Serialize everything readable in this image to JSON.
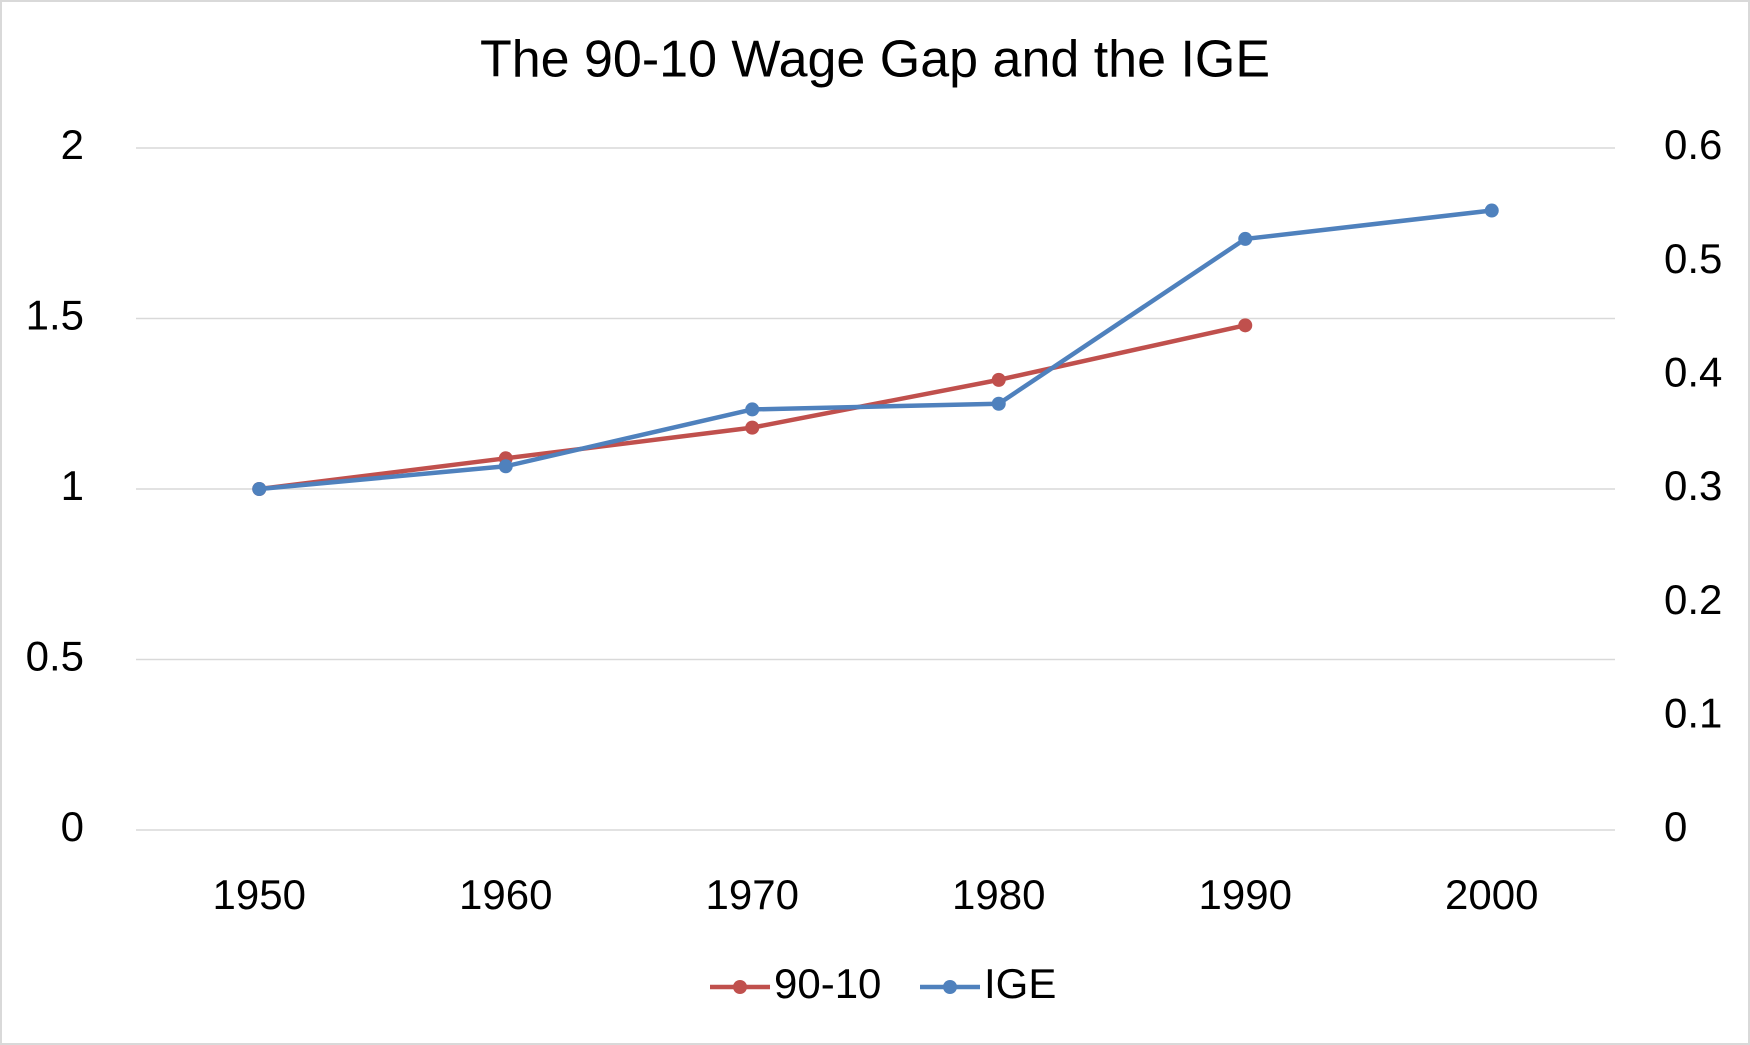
{
  "chart_data": {
    "type": "line",
    "title": "The 90-10 Wage Gap and the IGE",
    "categories": [
      "1950",
      "1960",
      "1970",
      "1980",
      "1990",
      "2000"
    ],
    "series": [
      {
        "name": "90-10",
        "color": "#c0504d",
        "values": [
          1.0,
          1.09,
          1.18,
          1.32,
          1.48,
          null
        ]
      },
      {
        "name": "IGE",
        "color": "#4f81bd",
        "axis": "y2",
        "values": [
          0.3,
          0.32,
          0.37,
          0.375,
          0.52,
          0.545
        ]
      }
    ],
    "ylim": [
      0,
      2
    ],
    "yticks": [
      0,
      0.5,
      1,
      1.5,
      2
    ],
    "y2lim": [
      0,
      0.6
    ],
    "y2ticks": [
      0,
      0.1,
      0.2,
      0.3,
      0.4,
      0.5,
      0.6
    ],
    "grid": true,
    "legend": "bottom"
  }
}
